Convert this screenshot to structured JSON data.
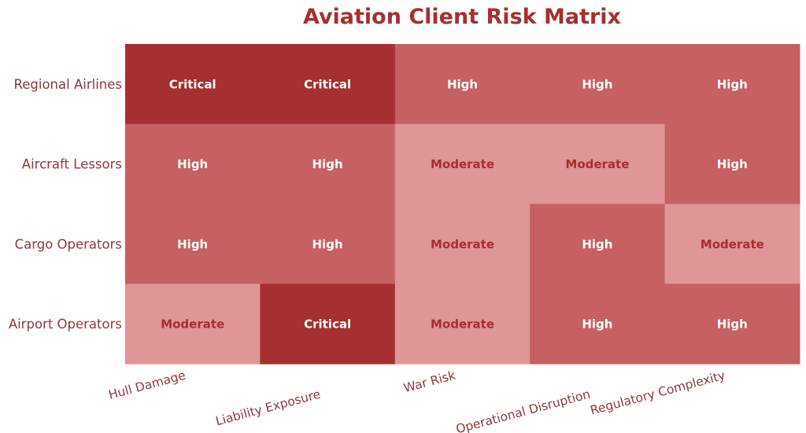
{
  "chart_data": {
    "type": "heatmap",
    "title": "Aviation Client Risk Matrix",
    "xlabel": "",
    "ylabel": "",
    "rows": [
      "Regional Airlines",
      "Aircraft Lessors",
      "Cargo Operators",
      "Airport Operators"
    ],
    "columns": [
      "Hull Damage",
      "Liability Exposure",
      "War Risk",
      "Operational Disruption",
      "Regulatory Complexity"
    ],
    "values": [
      [
        "Critical",
        "Critical",
        "High",
        "High",
        "High"
      ],
      [
        "High",
        "High",
        "Moderate",
        "Moderate",
        "High"
      ],
      [
        "High",
        "High",
        "Moderate",
        "High",
        "Moderate"
      ],
      [
        "Moderate",
        "Critical",
        "Moderate",
        "High",
        "High"
      ]
    ],
    "levels": {
      "Critical": {
        "fill": "#a52f31",
        "text": "#ffffff"
      },
      "High": {
        "fill": "#c66062",
        "text": "#ffffff"
      },
      "Moderate": {
        "fill": "#e09596",
        "text": "#a52f31"
      }
    },
    "grid": false,
    "legend": "none"
  }
}
